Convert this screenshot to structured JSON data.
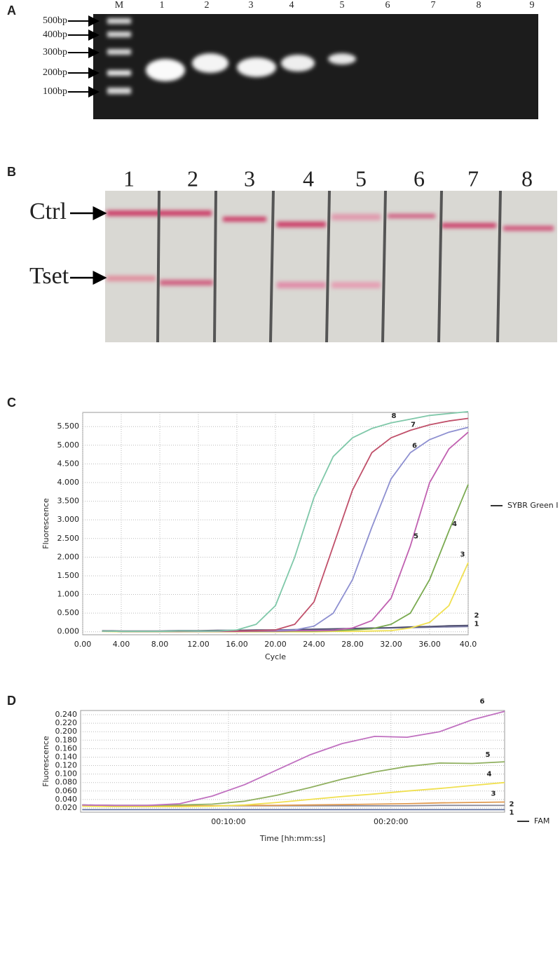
{
  "panels": {
    "a": {
      "label": "A",
      "lanes": [
        "M",
        "1",
        "2",
        "3",
        "4",
        "5",
        "6",
        "7",
        "8",
        "9"
      ],
      "markers": [
        "500bp",
        "400bp",
        "300bp",
        "200bp",
        "100bp"
      ]
    },
    "b": {
      "label": "B",
      "lanes": [
        "1",
        "2",
        "3",
        "4",
        "5",
        "6",
        "7",
        "8"
      ],
      "rows": [
        "Ctrl",
        "Tset"
      ]
    }
  },
  "chart_data": [
    {
      "type": "line",
      "panel_label": "C",
      "x_label": "Cycle",
      "y_label": "Fluorescence",
      "legend": "SYBR Green I",
      "legend_color": "#333333",
      "grid": true,
      "x": [
        2,
        4,
        6,
        8,
        10,
        12,
        14,
        16,
        18,
        20,
        22,
        24,
        26,
        28,
        30,
        32,
        34,
        36,
        38,
        40
      ],
      "xlim": [
        0,
        40
      ],
      "xticks": [
        {
          "value": 0,
          "label": "0.00"
        },
        {
          "value": 4,
          "label": "4.00"
        },
        {
          "value": 8,
          "label": "8.00"
        },
        {
          "value": 12,
          "label": "12.00"
        },
        {
          "value": 16,
          "label": "16.00"
        },
        {
          "value": 20,
          "label": "20.00"
        },
        {
          "value": 24,
          "label": "24.00"
        },
        {
          "value": 28,
          "label": "28.00"
        },
        {
          "value": 32,
          "label": "32.00"
        },
        {
          "value": 36,
          "label": "36.00"
        },
        {
          "value": 40,
          "label": "40.0"
        }
      ],
      "ylim": [
        -0.08,
        5.88
      ],
      "yticks": [
        {
          "value": 0,
          "label": "0.000"
        },
        {
          "value": 0.5,
          "label": "0.500"
        },
        {
          "value": 1,
          "label": "1.000"
        },
        {
          "value": 1.5,
          "label": "1.500"
        },
        {
          "value": 2,
          "label": "2.000"
        },
        {
          "value": 2.5,
          "label": "2.500"
        },
        {
          "value": 3,
          "label": "3.000"
        },
        {
          "value": 3.5,
          "label": "3.500"
        },
        {
          "value": 4,
          "label": "4.000"
        },
        {
          "value": 4.5,
          "label": "4.500"
        },
        {
          "value": 5,
          "label": "5.000"
        },
        {
          "value": 5.5,
          "label": "5.500"
        }
      ],
      "series": [
        {
          "name": "1",
          "color": "#7f7fa8",
          "values": [
            0.02,
            0.01,
            0.01,
            0.01,
            0.02,
            0.02,
            0.03,
            0.03,
            0.04,
            0.05,
            0.05,
            0.06,
            0.07,
            0.08,
            0.09,
            0.1,
            0.11,
            0.12,
            0.13,
            0.14
          ]
        },
        {
          "name": "2",
          "color": "#505070",
          "values": [
            0.03,
            0.02,
            0.02,
            0.02,
            0.03,
            0.03,
            0.04,
            0.04,
            0.05,
            0.05,
            0.06,
            0.07,
            0.08,
            0.09,
            0.1,
            0.11,
            0.13,
            0.14,
            0.16,
            0.17
          ]
        },
        {
          "name": "3",
          "color": "#f0e050",
          "values": [
            0.01,
            0.0,
            0.0,
            0.0,
            0.0,
            0.0,
            0.0,
            0.0,
            0.0,
            0.0,
            0.0,
            0.0,
            0.01,
            0.01,
            0.02,
            0.03,
            0.1,
            0.25,
            0.7,
            1.85
          ]
        },
        {
          "name": "4",
          "color": "#7aaa50",
          "values": [
            0.02,
            0.01,
            0.01,
            0.01,
            0.01,
            0.01,
            0.01,
            0.01,
            0.01,
            0.01,
            0.02,
            0.02,
            0.03,
            0.05,
            0.08,
            0.2,
            0.5,
            1.4,
            2.7,
            3.95
          ]
        },
        {
          "name": "5",
          "color": "#c060b0",
          "values": [
            0.02,
            0.01,
            0.01,
            0.01,
            0.01,
            0.01,
            0.01,
            0.01,
            0.02,
            0.02,
            0.03,
            0.03,
            0.04,
            0.1,
            0.3,
            0.9,
            2.3,
            4.0,
            4.9,
            5.35
          ]
        },
        {
          "name": "6",
          "color": "#8d8fd0",
          "values": [
            0.02,
            0.01,
            0.01,
            0.01,
            0.01,
            0.01,
            0.02,
            0.02,
            0.03,
            0.04,
            0.05,
            0.15,
            0.5,
            1.4,
            2.8,
            4.1,
            4.8,
            5.15,
            5.35,
            5.48
          ]
        },
        {
          "name": "7",
          "color": "#c0506a",
          "values": [
            0.02,
            0.01,
            0.01,
            0.01,
            0.01,
            0.02,
            0.02,
            0.02,
            0.03,
            0.05,
            0.2,
            0.8,
            2.3,
            3.8,
            4.8,
            5.2,
            5.4,
            5.55,
            5.65,
            5.72
          ]
        },
        {
          "name": "8",
          "color": "#7fc8a9",
          "values": [
            0.02,
            0.01,
            0.01,
            0.01,
            0.02,
            0.02,
            0.02,
            0.05,
            0.2,
            0.7,
            2.0,
            3.6,
            4.7,
            5.2,
            5.45,
            5.6,
            5.7,
            5.8,
            5.85,
            5.9
          ]
        }
      ]
    },
    {
      "type": "line",
      "panel_label": "D",
      "x_label": "Time [hh:mm:ss]",
      "y_label": "Fluorescence",
      "legend": "FAM",
      "legend_color": "#333333",
      "grid": true,
      "x": [
        60,
        180,
        300,
        420,
        540,
        660,
        780,
        900,
        1020,
        1140,
        1260,
        1380,
        1500,
        1620
      ],
      "xlim": [
        54,
        1620
      ],
      "xticks": [
        {
          "value": 600,
          "label": "00:10:00"
        },
        {
          "value": 1200,
          "label": "00:20:00"
        }
      ],
      "ylim": [
        0.01,
        0.25
      ],
      "yticks": [
        {
          "value": 0.02,
          "label": "0.020"
        },
        {
          "value": 0.04,
          "label": "0.040"
        },
        {
          "value": 0.06,
          "label": "0.060"
        },
        {
          "value": 0.08,
          "label": "0.080"
        },
        {
          "value": 0.1,
          "label": "0.100"
        },
        {
          "value": 0.12,
          "label": "0.120"
        },
        {
          "value": 0.14,
          "label": "0.140"
        },
        {
          "value": 0.16,
          "label": "0.160"
        },
        {
          "value": 0.18,
          "label": "0.180"
        },
        {
          "value": 0.2,
          "label": "0.200"
        },
        {
          "value": 0.22,
          "label": "0.220"
        },
        {
          "value": 0.24,
          "label": "0.240"
        }
      ],
      "series": [
        {
          "name": "1",
          "color": "#6070a0",
          "values": [
            0.016,
            0.016,
            0.016,
            0.016,
            0.016,
            0.016,
            0.016,
            0.016,
            0.016,
            0.016,
            0.016,
            0.016,
            0.016,
            0.016
          ]
        },
        {
          "name": "2",
          "color": "#8a8a9a",
          "values": [
            0.027,
            0.026,
            0.026,
            0.025,
            0.025,
            0.025,
            0.025,
            0.025,
            0.025,
            0.025,
            0.025,
            0.026,
            0.026,
            0.026
          ]
        },
        {
          "name": "3",
          "color": "#e09a50",
          "values": [
            0.026,
            0.025,
            0.025,
            0.025,
            0.025,
            0.026,
            0.026,
            0.027,
            0.028,
            0.029,
            0.03,
            0.032,
            0.033,
            0.034
          ]
        },
        {
          "name": "4",
          "color": "#f0e050",
          "values": [
            0.024,
            0.023,
            0.023,
            0.023,
            0.024,
            0.027,
            0.033,
            0.04,
            0.047,
            0.053,
            0.06,
            0.066,
            0.073,
            0.08
          ]
        },
        {
          "name": "5",
          "color": "#90b060",
          "values": [
            0.027,
            0.026,
            0.026,
            0.027,
            0.029,
            0.036,
            0.05,
            0.068,
            0.088,
            0.105,
            0.118,
            0.126,
            0.125,
            0.129
          ]
        },
        {
          "name": "6",
          "color": "#c070c0",
          "values": [
            0.027,
            0.026,
            0.026,
            0.03,
            0.048,
            0.075,
            0.11,
            0.145,
            0.172,
            0.189,
            0.187,
            0.2,
            0.228,
            0.248
          ]
        }
      ]
    }
  ]
}
